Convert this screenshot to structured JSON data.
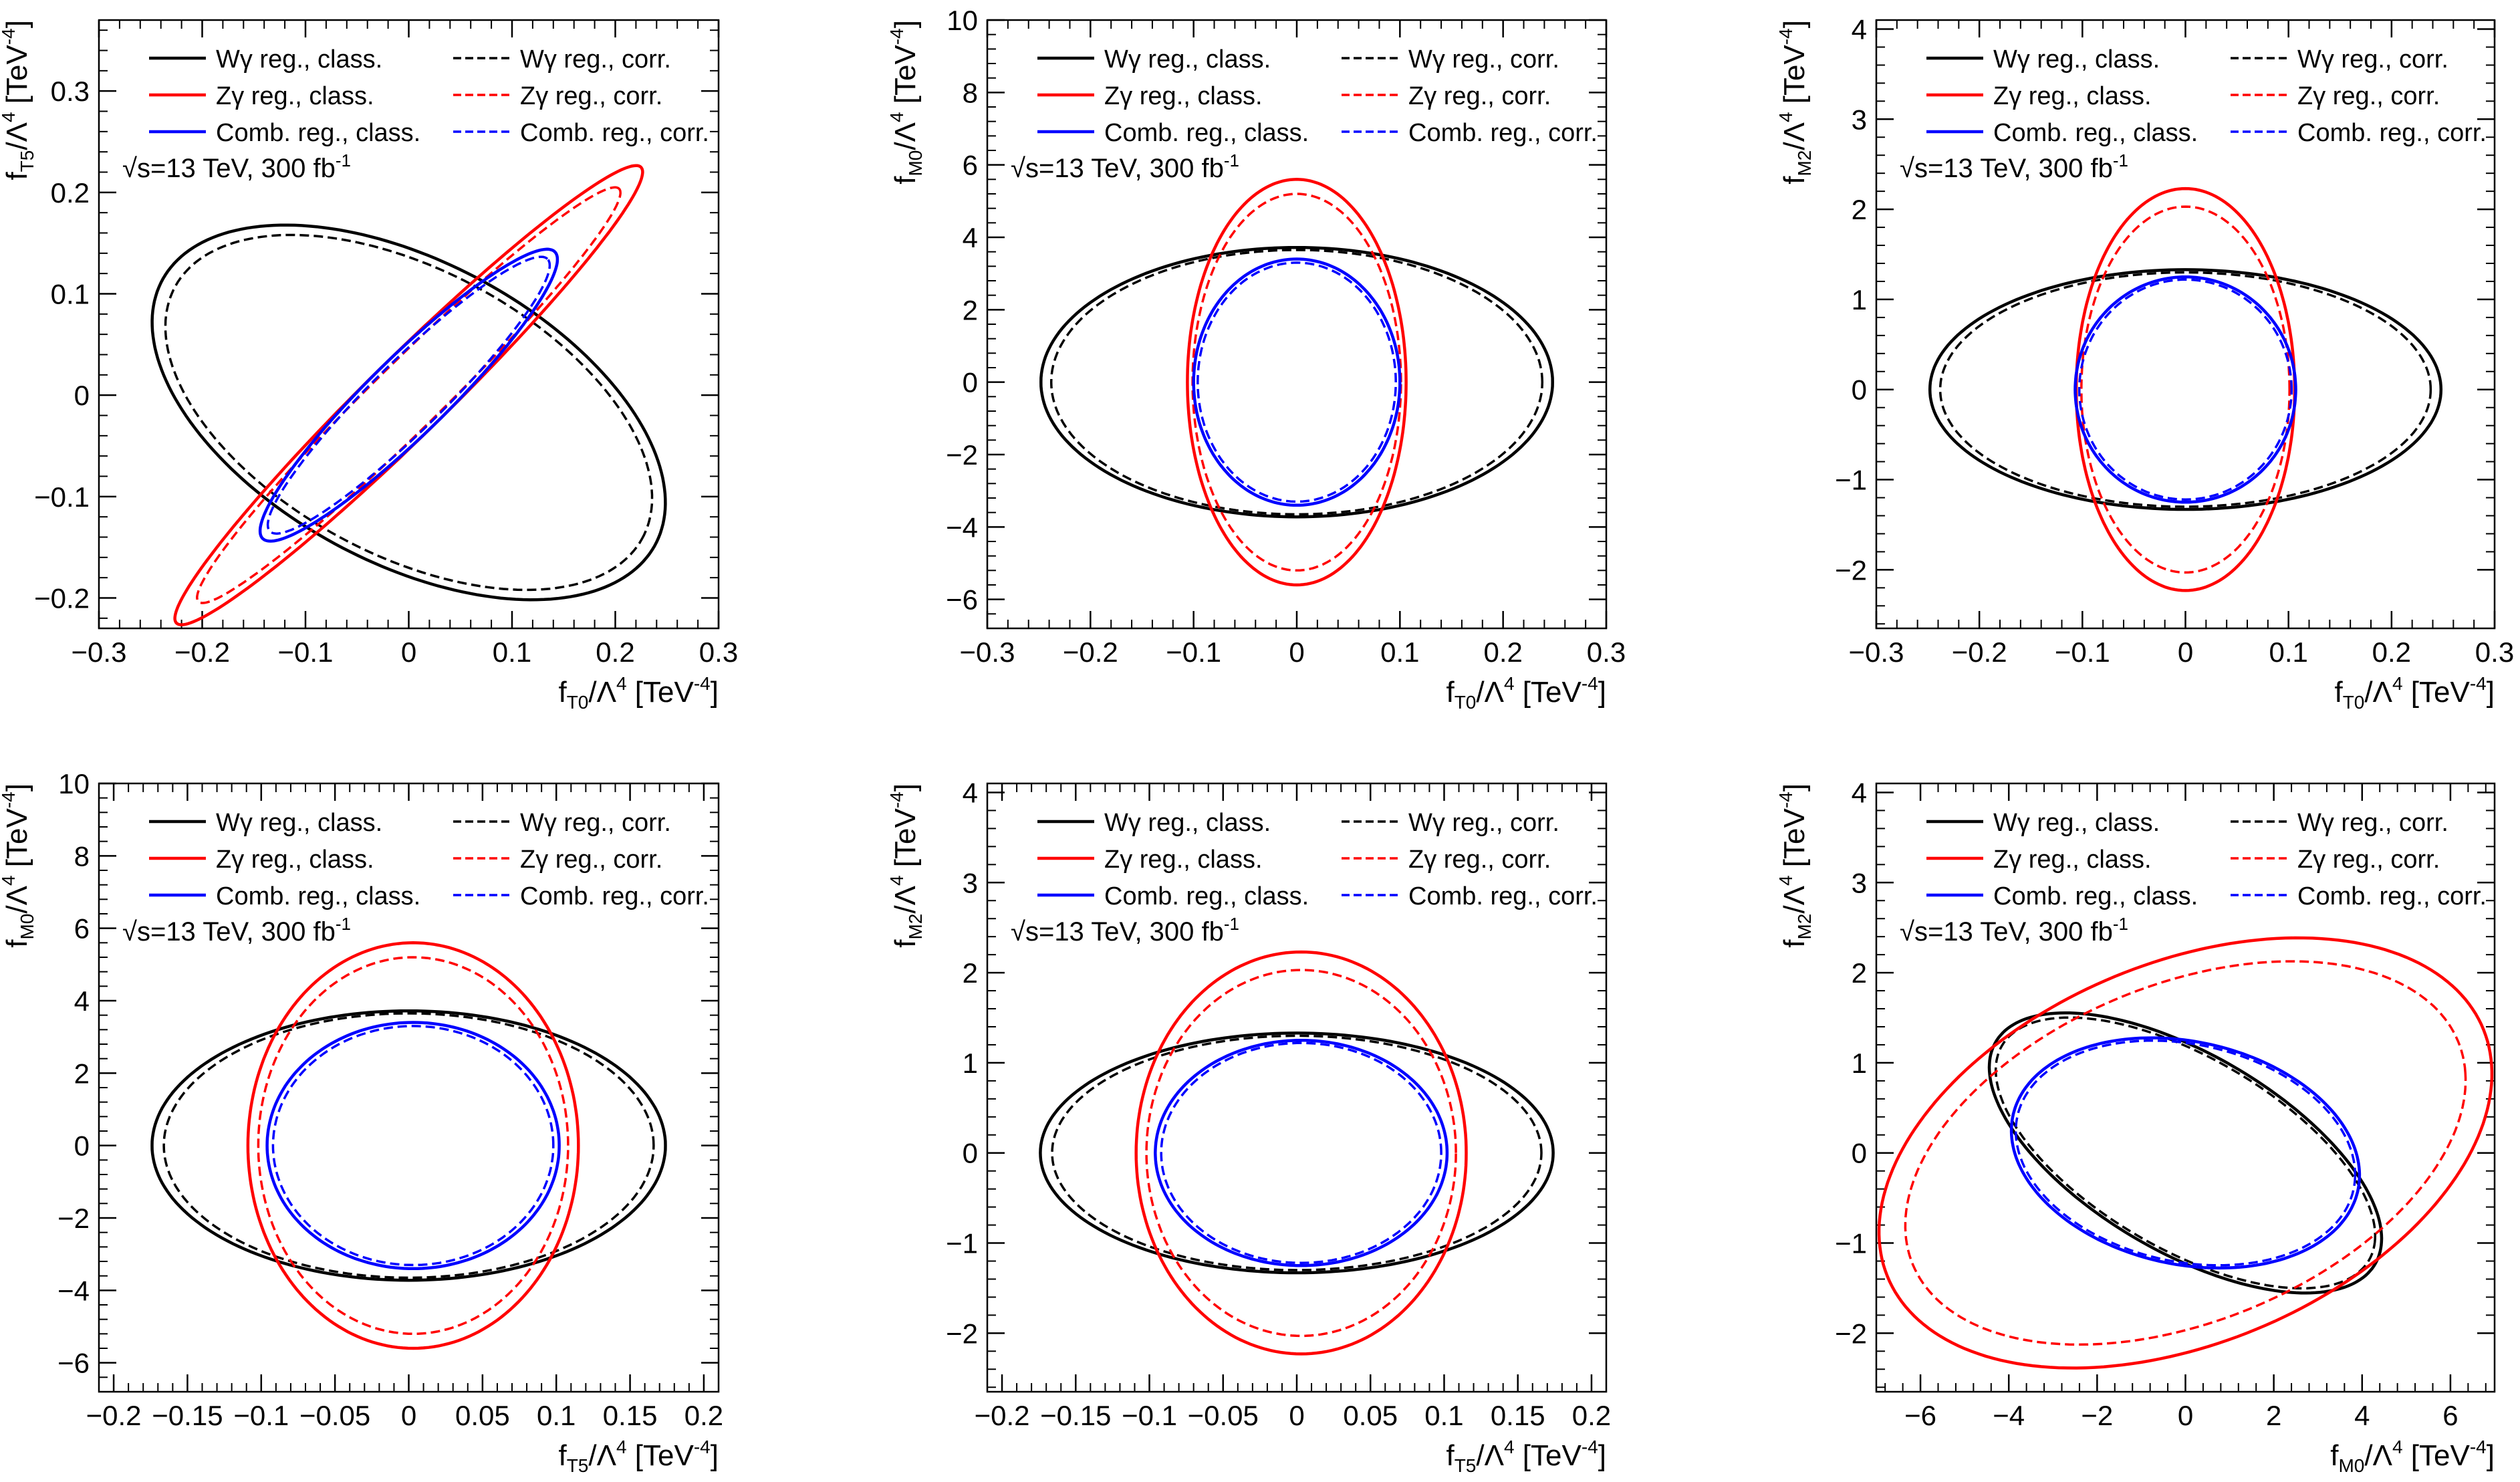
{
  "legend_entries": [
    {
      "label": "Wγ reg., class.",
      "color": "#000000",
      "dash": "solid",
      "col": 0
    },
    {
      "label": "Wγ reg., corr.",
      "color": "#000000",
      "dash": "dashed",
      "col": 1
    },
    {
      "label": "Zγ reg., class.",
      "color": "#ff0000",
      "dash": "solid",
      "col": 0
    },
    {
      "label": "Zγ reg., corr.",
      "color": "#ff0000",
      "dash": "dashed",
      "col": 1
    },
    {
      "label": "Comb. reg., class.",
      "color": "#0000ff",
      "dash": "solid",
      "col": 0
    },
    {
      "label": "Comb. reg., corr.",
      "color": "#0000ff",
      "dash": "dashed",
      "col": 1
    }
  ],
  "energy_label": {
    "prefix": "√s=13 TeV, 300 fb",
    "sup": "-1"
  },
  "chart_data": [
    {
      "type": "line",
      "xlabel": "f_T0/Λ^4 [TeV^-4]",
      "ylabel": "f_T5/Λ^4 [TeV^-4]",
      "x_sub": "T0",
      "y_sub": "T5",
      "xlim": [
        -0.3,
        0.3
      ],
      "ylim": [
        -0.23,
        0.37
      ],
      "xticks": [
        -0.3,
        -0.2,
        -0.1,
        0,
        0.1,
        0.2,
        0.3
      ],
      "xtick_labels": [
        "−0.3",
        "−0.2",
        "−0.1",
        "0",
        "0.1",
        "0.2",
        "0.3"
      ],
      "yticks": [
        -0.2,
        -0.1,
        0,
        0.1,
        0.2,
        0.3
      ],
      "ytick_labels": [
        "−0.2",
        "−0.1",
        "0",
        "0.1",
        "0.2",
        "0.3"
      ],
      "series": [
        {
          "name": "Wγ reg., class.",
          "color": "#000000",
          "dash": "solid",
          "ellipse": {
            "cx": 0.0,
            "cy": -0.017,
            "a": 0.272,
            "b": 0.148,
            "angle_deg": -29
          }
        },
        {
          "name": "Wγ reg., corr.",
          "color": "#000000",
          "dash": "dashed",
          "ellipse": {
            "cx": 0.0,
            "cy": -0.017,
            "a": 0.258,
            "b": 0.14,
            "angle_deg": -29
          }
        },
        {
          "name": "Zγ reg., class.",
          "color": "#ff0000",
          "dash": "solid",
          "ellipse": {
            "cx": 0.0,
            "cy": 0.0,
            "a": 0.318,
            "b": 0.038,
            "angle_deg": 45
          }
        },
        {
          "name": "Zγ reg., corr.",
          "color": "#ff0000",
          "dash": "dashed",
          "ellipse": {
            "cx": 0.0,
            "cy": 0.0,
            "a": 0.288,
            "b": 0.033,
            "angle_deg": 45
          }
        },
        {
          "name": "Comb. reg., class.",
          "color": "#0000ff",
          "dash": "solid",
          "ellipse": {
            "cx": 0.0,
            "cy": 0.0,
            "a": 0.2,
            "b": 0.038,
            "angle_deg": 45
          }
        },
        {
          "name": "Comb. reg., corr.",
          "color": "#0000ff",
          "dash": "dashed",
          "ellipse": {
            "cx": 0.0,
            "cy": 0.0,
            "a": 0.19,
            "b": 0.034,
            "angle_deg": 45
          }
        }
      ]
    },
    {
      "type": "line",
      "xlabel": "f_T0/Λ^4 [TeV^-4]",
      "ylabel": "f_M0/Λ^4 [TeV^-4]",
      "x_sub": "T0",
      "y_sub": "M0",
      "xlim": [
        -0.3,
        0.3
      ],
      "ylim": [
        -6.8,
        10
      ],
      "xticks": [
        -0.3,
        -0.2,
        -0.1,
        0,
        0.1,
        0.2,
        0.3
      ],
      "xtick_labels": [
        "−0.3",
        "−0.2",
        "−0.1",
        "0",
        "0.1",
        "0.2",
        "0.3"
      ],
      "yticks": [
        -6,
        -4,
        -2,
        0,
        2,
        4,
        6,
        8,
        10
      ],
      "ytick_labels": [
        "−6",
        "−4",
        "−2",
        "0",
        "2",
        "4",
        "6",
        "8",
        "10"
      ],
      "series": [
        {
          "name": "Wγ reg., class.",
          "color": "#000000",
          "dash": "solid",
          "ellipse": {
            "cx": 0.0,
            "cy": 0.0,
            "a": 0.248,
            "b": 3.72,
            "angle_deg": 0
          }
        },
        {
          "name": "Wγ reg., corr.",
          "color": "#000000",
          "dash": "dashed",
          "ellipse": {
            "cx": 0.0,
            "cy": 0.0,
            "a": 0.238,
            "b": 3.65,
            "angle_deg": 0
          }
        },
        {
          "name": "Zγ reg., class.",
          "color": "#ff0000",
          "dash": "solid",
          "ellipse": {
            "cx": 0.0,
            "cy": 0.0,
            "a": 0.106,
            "b": 5.6,
            "angle_deg": 0
          }
        },
        {
          "name": "Zγ reg., corr.",
          "color": "#ff0000",
          "dash": "dashed",
          "ellipse": {
            "cx": 0.0,
            "cy": 0.0,
            "a": 0.101,
            "b": 5.2,
            "angle_deg": 0
          }
        },
        {
          "name": "Comb. reg., class.",
          "color": "#0000ff",
          "dash": "solid",
          "ellipse": {
            "cx": 0.0,
            "cy": 0.0,
            "a": 0.1,
            "b": 3.4,
            "angle_deg": 0
          }
        },
        {
          "name": "Comb. reg., corr.",
          "color": "#0000ff",
          "dash": "dashed",
          "ellipse": {
            "cx": 0.0,
            "cy": 0.0,
            "a": 0.096,
            "b": 3.3,
            "angle_deg": 0
          }
        }
      ]
    },
    {
      "type": "line",
      "xlabel": "f_T0/Λ^4 [TeV^-4]",
      "ylabel": "f_M2/Λ^4 [TeV^-4]",
      "x_sub": "T0",
      "y_sub": "M2",
      "xlim": [
        -0.3,
        0.3
      ],
      "ylim": [
        -2.65,
        4.1
      ],
      "xticks": [
        -0.3,
        -0.2,
        -0.1,
        0,
        0.1,
        0.2,
        0.3
      ],
      "xtick_labels": [
        "−0.3",
        "−0.2",
        "−0.1",
        "0",
        "0.1",
        "0.2",
        "0.3"
      ],
      "yticks": [
        -2,
        -1,
        0,
        1,
        2,
        3,
        4
      ],
      "ytick_labels": [
        "−2",
        "−1",
        "0",
        "1",
        "2",
        "3",
        "4"
      ],
      "series": [
        {
          "name": "Wγ reg., class.",
          "color": "#000000",
          "dash": "solid",
          "ellipse": {
            "cx": 0.0,
            "cy": 0.0,
            "a": 0.248,
            "b": 1.33,
            "angle_deg": 0
          }
        },
        {
          "name": "Wγ reg., corr.",
          "color": "#000000",
          "dash": "dashed",
          "ellipse": {
            "cx": 0.0,
            "cy": 0.0,
            "a": 0.238,
            "b": 1.3,
            "angle_deg": 0
          }
        },
        {
          "name": "Zγ reg., class.",
          "color": "#ff0000",
          "dash": "solid",
          "ellipse": {
            "cx": 0.0,
            "cy": 0.0,
            "a": 0.106,
            "b": 2.23,
            "angle_deg": 0
          }
        },
        {
          "name": "Zγ reg., corr.",
          "color": "#ff0000",
          "dash": "dashed",
          "ellipse": {
            "cx": 0.0,
            "cy": 0.0,
            "a": 0.101,
            "b": 2.03,
            "angle_deg": 0
          }
        },
        {
          "name": "Comb. reg., class.",
          "color": "#0000ff",
          "dash": "solid",
          "ellipse": {
            "cx": 0.0,
            "cy": 0.0,
            "a": 0.107,
            "b": 1.25,
            "angle_deg": 0
          }
        },
        {
          "name": "Comb. reg., corr.",
          "color": "#0000ff",
          "dash": "dashed",
          "ellipse": {
            "cx": 0.0,
            "cy": 0.0,
            "a": 0.103,
            "b": 1.22,
            "angle_deg": 0
          }
        }
      ]
    },
    {
      "type": "line",
      "xlabel": "f_T5/Λ^4 [TeV^-4]",
      "ylabel": "f_M0/Λ^4 [TeV^-4]",
      "x_sub": "T5",
      "y_sub": "M0",
      "xlim": [
        -0.21,
        0.21
      ],
      "ylim": [
        -6.8,
        10
      ],
      "xticks": [
        -0.2,
        -0.15,
        -0.1,
        -0.05,
        0,
        0.05,
        0.1,
        0.15,
        0.2
      ],
      "xtick_labels": [
        "−0.2",
        "−0.15",
        "−0.1",
        "−0.05",
        "0",
        "0.05",
        "0.1",
        "0.15",
        "0.2"
      ],
      "yticks": [
        -6,
        -4,
        -2,
        0,
        2,
        4,
        6,
        8,
        10
      ],
      "ytick_labels": [
        "−6",
        "−4",
        "−2",
        "0",
        "2",
        "4",
        "6",
        "8",
        "10"
      ],
      "series": [
        {
          "name": "Wγ reg., class.",
          "color": "#000000",
          "dash": "solid",
          "ellipse": {
            "cx": 0.0,
            "cy": 0.0,
            "a": 0.174,
            "b": 3.72,
            "angle_deg": 0
          }
        },
        {
          "name": "Wγ reg., corr.",
          "color": "#000000",
          "dash": "dashed",
          "ellipse": {
            "cx": 0.0,
            "cy": 0.0,
            "a": 0.166,
            "b": 3.65,
            "angle_deg": 0
          }
        },
        {
          "name": "Zγ reg., class.",
          "color": "#ff0000",
          "dash": "solid",
          "ellipse": {
            "cx": 0.003,
            "cy": 0.0,
            "a": 0.112,
            "b": 5.6,
            "angle_deg": 0
          }
        },
        {
          "name": "Zγ reg., corr.",
          "color": "#ff0000",
          "dash": "dashed",
          "ellipse": {
            "cx": 0.003,
            "cy": 0.0,
            "a": 0.105,
            "b": 5.2,
            "angle_deg": 0
          }
        },
        {
          "name": "Comb. reg., class.",
          "color": "#0000ff",
          "dash": "solid",
          "ellipse": {
            "cx": 0.003,
            "cy": 0.0,
            "a": 0.099,
            "b": 3.4,
            "angle_deg": 0
          }
        },
        {
          "name": "Comb. reg., corr.",
          "color": "#0000ff",
          "dash": "dashed",
          "ellipse": {
            "cx": 0.003,
            "cy": 0.0,
            "a": 0.095,
            "b": 3.3,
            "angle_deg": 0
          }
        }
      ]
    },
    {
      "type": "line",
      "xlabel": "f_T5/Λ^4 [TeV^-4]",
      "ylabel": "f_M2/Λ^4 [TeV^-4]",
      "x_sub": "T5",
      "y_sub": "M2",
      "xlim": [
        -0.21,
        0.21
      ],
      "ylim": [
        -2.65,
        4.1
      ],
      "xticks": [
        -0.2,
        -0.15,
        -0.1,
        -0.05,
        0,
        0.05,
        0.1,
        0.15,
        0.2
      ],
      "xtick_labels": [
        "−0.2",
        "−0.15",
        "−0.1",
        "−0.05",
        "0",
        "0.05",
        "0.1",
        "0.15",
        "0.2"
      ],
      "yticks": [
        -2,
        -1,
        0,
        1,
        2,
        3,
        4
      ],
      "ytick_labels": [
        "−2",
        "−1",
        "0",
        "1",
        "2",
        "3",
        "4"
      ],
      "series": [
        {
          "name": "Wγ reg., class.",
          "color": "#000000",
          "dash": "solid",
          "ellipse": {
            "cx": 0.0,
            "cy": 0.0,
            "a": 0.174,
            "b": 1.33,
            "angle_deg": 0
          }
        },
        {
          "name": "Wγ reg., corr.",
          "color": "#000000",
          "dash": "dashed",
          "ellipse": {
            "cx": 0.0,
            "cy": 0.0,
            "a": 0.166,
            "b": 1.3,
            "angle_deg": 0
          }
        },
        {
          "name": "Zγ reg., class.",
          "color": "#ff0000",
          "dash": "solid",
          "ellipse": {
            "cx": 0.003,
            "cy": 0.0,
            "a": 0.112,
            "b": 2.23,
            "angle_deg": 0
          }
        },
        {
          "name": "Zγ reg., corr.",
          "color": "#ff0000",
          "dash": "dashed",
          "ellipse": {
            "cx": 0.003,
            "cy": 0.0,
            "a": 0.105,
            "b": 2.03,
            "angle_deg": 0
          }
        },
        {
          "name": "Comb. reg., class.",
          "color": "#0000ff",
          "dash": "solid",
          "ellipse": {
            "cx": 0.003,
            "cy": 0.0,
            "a": 0.099,
            "b": 1.25,
            "angle_deg": 0
          }
        },
        {
          "name": "Comb. reg., corr.",
          "color": "#0000ff",
          "dash": "dashed",
          "ellipse": {
            "cx": 0.003,
            "cy": 0.0,
            "a": 0.095,
            "b": 1.22,
            "angle_deg": 0
          }
        }
      ]
    },
    {
      "type": "line",
      "xlabel": "f_M0/Λ^4 [TeV^-4]",
      "ylabel": "f_M2/Λ^4 [TeV^-4]",
      "x_sub": "M0",
      "y_sub": "M2",
      "xlim": [
        -7,
        7
      ],
      "ylim": [
        -2.65,
        4.1
      ],
      "xticks": [
        -6,
        -4,
        -2,
        0,
        2,
        4,
        6
      ],
      "xtick_labels": [
        "−6",
        "−4",
        "−2",
        "0",
        "2",
        "4",
        "6"
      ],
      "yticks": [
        -2,
        -1,
        0,
        1,
        2,
        3,
        4
      ],
      "ytick_labels": [
        "−2",
        "−1",
        "0",
        "1",
        "2",
        "3",
        "4"
      ],
      "series": [
        {
          "name": "Wγ reg., class.",
          "color": "#000000",
          "dash": "solid",
          "ellipse": {
            "cx": 0.0,
            "cy": 0.0,
            "a": 4.55,
            "b": 1.2,
            "angle_deg": -13
          }
        },
        {
          "name": "Wγ reg., corr.",
          "color": "#000000",
          "dash": "dashed",
          "ellipse": {
            "cx": 0.0,
            "cy": 0.0,
            "a": 4.4,
            "b": 1.16,
            "angle_deg": -13
          }
        },
        {
          "name": "Zγ reg., class.",
          "color": "#ff0000",
          "dash": "solid",
          "ellipse": {
            "cx": 0.0,
            "cy": 0.0,
            "a": 7.0,
            "b": 2.2,
            "angle_deg": 8
          }
        },
        {
          "name": "Zγ reg., corr.",
          "color": "#ff0000",
          "dash": "dashed",
          "ellipse": {
            "cx": 0.0,
            "cy": 0.0,
            "a": 6.4,
            "b": 1.95,
            "angle_deg": 8
          }
        },
        {
          "name": "Comb. reg., class.",
          "color": "#0000ff",
          "dash": "solid",
          "ellipse": {
            "cx": 0.0,
            "cy": 0.0,
            "a": 3.95,
            "b": 1.25,
            "angle_deg": -4
          }
        },
        {
          "name": "Comb. reg., corr.",
          "color": "#0000ff",
          "dash": "dashed",
          "ellipse": {
            "cx": 0.0,
            "cy": 0.0,
            "a": 3.85,
            "b": 1.22,
            "angle_deg": -4
          }
        }
      ]
    }
  ]
}
